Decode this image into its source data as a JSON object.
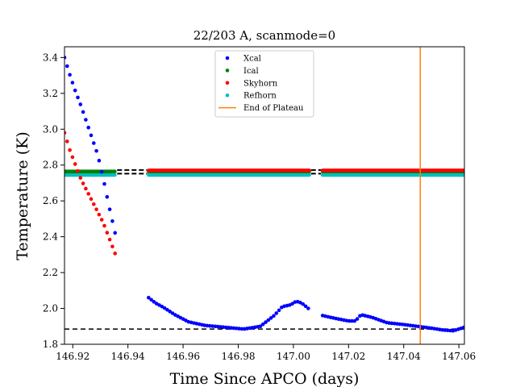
{
  "chart_data": {
    "type": "scatter",
    "title": "22/203 A, scanmode=0",
    "xlabel": "Time Since APCO (days)",
    "ylabel": "Temperature (K)",
    "xlim": [
      146.917,
      147.062
    ],
    "ylim": [
      1.8,
      3.46
    ],
    "grid": false,
    "legend_placement": "upper-center",
    "x_ticks": [
      "146.92",
      "146.94",
      "146.96",
      "146.98",
      "147.00",
      "147.02",
      "147.04",
      "147.06"
    ],
    "y_ticks": [
      "1.8",
      "2.0",
      "2.2",
      "2.4",
      "2.6",
      "2.8",
      "3.0",
      "3.2",
      "3.4"
    ],
    "series": [
      {
        "name": "Xcal",
        "color": "#0000ff",
        "segments": [
          {
            "x0": 146.917,
            "x1": 146.9355,
            "points": [
              [
                146.917,
                3.4
              ],
              [
                146.919,
                3.3
              ],
              [
                146.921,
                3.21
              ],
              [
                146.923,
                3.13
              ],
              [
                146.925,
                3.04
              ],
              [
                146.927,
                2.95
              ],
              [
                146.929,
                2.86
              ],
              [
                146.931,
                2.73
              ],
              [
                146.933,
                2.58
              ],
              [
                146.9355,
                2.41
              ]
            ]
          },
          {
            "x0": 146.9475,
            "x1": 147.0058,
            "points": [
              [
                146.9475,
                2.06
              ],
              [
                146.95,
                2.03
              ],
              [
                146.953,
                2.005
              ],
              [
                146.957,
                1.965
              ],
              [
                146.962,
                1.925
              ],
              [
                146.968,
                1.905
              ],
              [
                146.975,
                1.895
              ],
              [
                146.982,
                1.885
              ],
              [
                146.988,
                1.9
              ],
              [
                146.993,
                1.96
              ],
              [
                146.996,
                2.01
              ],
              [
                146.999,
                2.02
              ],
              [
                147.001,
                2.04
              ],
              [
                147.003,
                2.03
              ],
              [
                147.0058,
                1.995
              ]
            ]
          },
          {
            "x0": 147.0106,
            "x1": 147.062,
            "points": [
              [
                147.0106,
                1.96
              ],
              [
                147.015,
                1.945
              ],
              [
                147.02,
                1.93
              ],
              [
                147.0225,
                1.93
              ],
              [
                147.0245,
                1.965
              ],
              [
                147.0285,
                1.95
              ],
              [
                147.034,
                1.92
              ],
              [
                147.04,
                1.91
              ],
              [
                147.045,
                1.9
              ],
              [
                147.05,
                1.89
              ],
              [
                147.054,
                1.88
              ],
              [
                147.058,
                1.875
              ],
              [
                147.062,
                1.895
              ]
            ]
          }
        ]
      },
      {
        "name": "Ical",
        "color": "#008000",
        "segments": [
          {
            "x0": 146.917,
            "x1": 146.9355,
            "points": [
              [
                146.917,
                2.764
              ],
              [
                146.9355,
                2.764
              ]
            ]
          },
          {
            "x0": 146.9475,
            "x1": 147.0058,
            "points": [
              [
                146.9475,
                2.764
              ],
              [
                147.0058,
                2.764
              ]
            ]
          },
          {
            "x0": 147.0106,
            "x1": 147.062,
            "points": [
              [
                147.0106,
                2.764
              ],
              [
                147.062,
                2.764
              ]
            ]
          }
        ]
      },
      {
        "name": "Skyhorn",
        "color": "#ff0000",
        "segments": [
          {
            "x0": 146.917,
            "x1": 146.9355,
            "points": [
              [
                146.917,
                2.98
              ],
              [
                146.919,
                2.88
              ],
              [
                146.921,
                2.8
              ],
              [
                146.923,
                2.72
              ],
              [
                146.925,
                2.66
              ],
              [
                146.927,
                2.6
              ],
              [
                146.929,
                2.54
              ],
              [
                146.931,
                2.48
              ],
              [
                146.933,
                2.4
              ],
              [
                146.9355,
                2.3
              ]
            ]
          },
          {
            "x0": 146.9475,
            "x1": 147.0058,
            "points": [
              [
                146.9475,
                2.77
              ],
              [
                147.0058,
                2.77
              ]
            ]
          },
          {
            "x0": 147.0106,
            "x1": 147.062,
            "points": [
              [
                147.0106,
                2.77
              ],
              [
                147.062,
                2.77
              ]
            ]
          }
        ]
      },
      {
        "name": "Refhorn",
        "color": "#00bfbf",
        "segments": [
          {
            "x0": 146.917,
            "x1": 146.9355,
            "points": [
              [
                146.917,
                2.745
              ],
              [
                146.9355,
                2.745
              ]
            ]
          },
          {
            "x0": 146.9475,
            "x1": 147.0058,
            "points": [
              [
                146.9475,
                2.745
              ],
              [
                147.0058,
                2.745
              ]
            ]
          },
          {
            "x0": 147.0106,
            "x1": 147.062,
            "points": [
              [
                147.0106,
                2.745
              ],
              [
                147.062,
                2.745
              ]
            ]
          }
        ]
      }
    ],
    "reference_lines": [
      {
        "type": "hline",
        "y": 1.885,
        "style": "dashed",
        "color": "#000000"
      },
      {
        "type": "hline",
        "y": 2.772,
        "style": "dashed",
        "color": "#000000"
      },
      {
        "type": "hline",
        "y": 2.752,
        "style": "dashed",
        "color": "#000000"
      }
    ],
    "end_of_plateau": {
      "name": "End of Plateau",
      "x": 147.046,
      "color": "#ff7f0e"
    }
  }
}
